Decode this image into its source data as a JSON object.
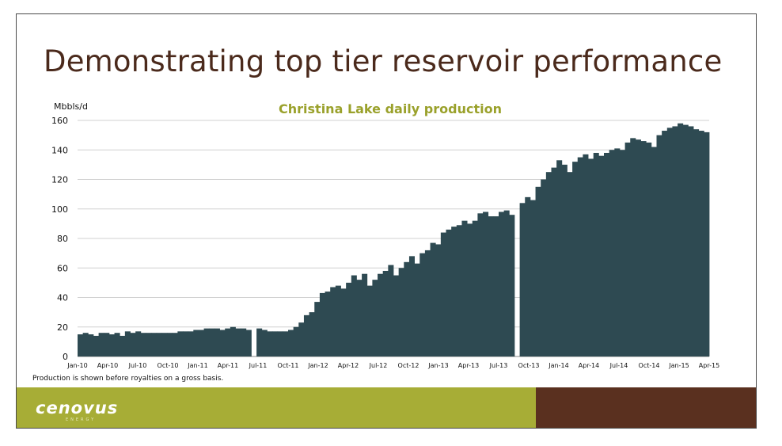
{
  "slide": {
    "title": "Demonstrating top tier reservoir performance",
    "footnote": "Production is shown before royalties on a gross basis.",
    "logo": {
      "text": "cenovus",
      "subtext": "ENERGY"
    },
    "colors": {
      "title": "#4b2a1c",
      "footer_green": "#a7ad36",
      "footer_brown": "#5a301f"
    }
  },
  "chart_data": {
    "type": "bar",
    "title": "Christina Lake daily production",
    "title_color": "#9aa12b",
    "ylabel": "Mbbls/d",
    "ylim": [
      0,
      160
    ],
    "yticks": [
      0,
      20,
      40,
      60,
      80,
      100,
      120,
      140,
      160
    ],
    "grid": true,
    "bar_color": "#2e4a52",
    "xtick_labels": [
      "Jan-10",
      "Apr-10",
      "Jul-10",
      "Oct-10",
      "Jan-11",
      "Apr-11",
      "Jul-11",
      "Oct-11",
      "Jan-12",
      "Apr-12",
      "Jul-12",
      "Oct-12",
      "Jan-13",
      "Apr-13",
      "Jul-13",
      "Oct-13",
      "Jan-14",
      "Apr-14",
      "Jul-14",
      "Oct-14",
      "Jan-15",
      "Apr-15"
    ],
    "series": [
      {
        "values": [
          15,
          16,
          15,
          14,
          16,
          16,
          15,
          16,
          14,
          17,
          16,
          17,
          16,
          16,
          16,
          16,
          16,
          16,
          16,
          17,
          17,
          17,
          18,
          18,
          19,
          19,
          19,
          18,
          19,
          20,
          19,
          19,
          18,
          0,
          19,
          18,
          17,
          17,
          17,
          17,
          18,
          20,
          23,
          28,
          30,
          37,
          43,
          44,
          47,
          48,
          46,
          50,
          55,
          52,
          56,
          48,
          52,
          56,
          58,
          62,
          55,
          60,
          64,
          68,
          63,
          70,
          72,
          77,
          76,
          84,
          86,
          88,
          89,
          92,
          90,
          92,
          97,
          98,
          95,
          95,
          98,
          99,
          96,
          0,
          104,
          108,
          106,
          115,
          120,
          125,
          128,
          133,
          130,
          125,
          132,
          135,
          137,
          134,
          138,
          136,
          138,
          140,
          141,
          140,
          145,
          148,
          147,
          146,
          145,
          142,
          150,
          153,
          155,
          156,
          158,
          157,
          156,
          154,
          153,
          152
        ]
      }
    ]
  }
}
